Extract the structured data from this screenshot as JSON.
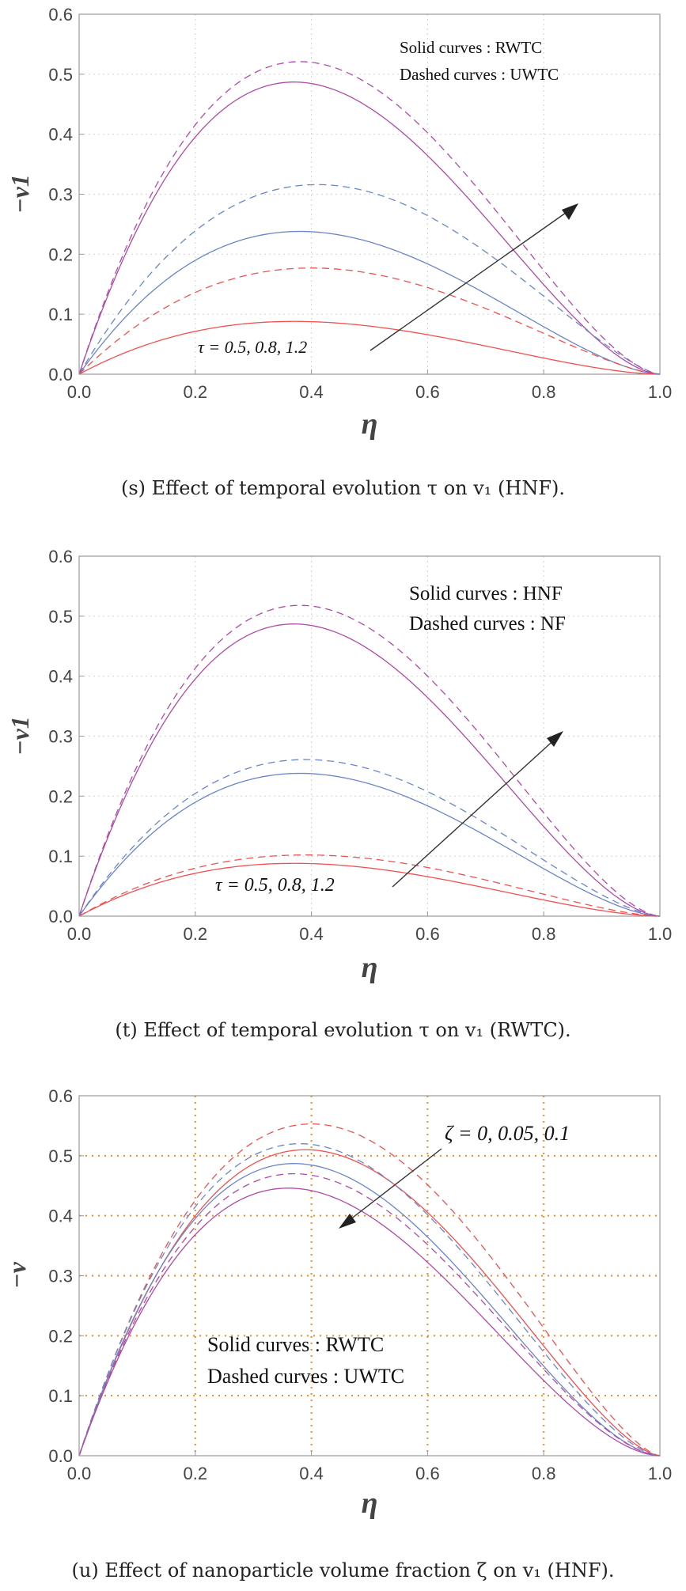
{
  "colors": {
    "red": "#f05050",
    "blue": "#6a86c8",
    "purple": "#b04aa8",
    "frame": "#999999",
    "grid_gray": "#d8d8d8",
    "grid_orange": "#f08a28",
    "arrow": "#333333",
    "text": "#222222"
  },
  "chart_data": [
    {
      "type": "line",
      "title": "",
      "xlabel": "η",
      "ylabel": "−v1",
      "xlim": [
        0,
        1
      ],
      "ylim": [
        0,
        0.6
      ],
      "xticks": [
        "0.0",
        "0.2",
        "0.4",
        "0.6",
        "0.8",
        "1.0"
      ],
      "yticks": [
        "0.0",
        "0.1",
        "0.2",
        "0.3",
        "0.4",
        "0.5",
        "0.6"
      ],
      "grid": "dotted",
      "legend": {
        "solid": "Solid curves : RWTC",
        "dashed": "Dashed curves : UWTC"
      },
      "annotation": "τ = 0.5, 0.8, 1.2",
      "caption": "(s) Effect of temporal evolution τ on v₁ (HNF).",
      "series": [
        {
          "name": "RWTC, τ = 0.5",
          "style": "solid",
          "color": "red",
          "peak_x": 0.37,
          "peak_y": 0.088
        },
        {
          "name": "RWTC, τ = 0.8",
          "style": "solid",
          "color": "blue",
          "peak_x": 0.38,
          "peak_y": 0.238
        },
        {
          "name": "RWTC, τ = 1.2",
          "style": "solid",
          "color": "purple",
          "peak_x": 0.37,
          "peak_y": 0.487
        },
        {
          "name": "UWTC, τ = 0.5",
          "style": "dashed",
          "color": "red",
          "peak_x": 0.4,
          "peak_y": 0.177
        },
        {
          "name": "UWTC, τ = 0.8",
          "style": "dashed",
          "color": "blue",
          "peak_x": 0.41,
          "peak_y": 0.316
        },
        {
          "name": "UWTC, τ = 1.2",
          "style": "dashed",
          "color": "purple",
          "peak_x": 0.38,
          "peak_y": 0.521
        }
      ]
    },
    {
      "type": "line",
      "title": "",
      "xlabel": "η",
      "ylabel": "−v1",
      "xlim": [
        0,
        1
      ],
      "ylim": [
        0,
        0.6
      ],
      "xticks": [
        "0.0",
        "0.2",
        "0.4",
        "0.6",
        "0.8",
        "1.0"
      ],
      "yticks": [
        "0.0",
        "0.1",
        "0.2",
        "0.3",
        "0.4",
        "0.5",
        "0.6"
      ],
      "grid": "dotted",
      "legend": {
        "solid": "Solid curves : HNF",
        "dashed": "Dashed curves : NF"
      },
      "annotation": "τ = 0.5, 0.8, 1.2",
      "caption": "(t) Effect of temporal evolution τ on v₁ (RWTC).",
      "series": [
        {
          "name": "HNF, τ = 0.5",
          "style": "solid",
          "color": "red",
          "peak_x": 0.37,
          "peak_y": 0.088
        },
        {
          "name": "HNF, τ = 0.8",
          "style": "solid",
          "color": "blue",
          "peak_x": 0.38,
          "peak_y": 0.238
        },
        {
          "name": "HNF, τ = 1.2",
          "style": "solid",
          "color": "purple",
          "peak_x": 0.37,
          "peak_y": 0.487
        },
        {
          "name": "NF, τ = 0.5",
          "style": "dashed",
          "color": "red",
          "peak_x": 0.39,
          "peak_y": 0.102
        },
        {
          "name": "NF, τ = 0.8",
          "style": "dashed",
          "color": "blue",
          "peak_x": 0.39,
          "peak_y": 0.261
        },
        {
          "name": "NF, τ = 1.2",
          "style": "dashed",
          "color": "purple",
          "peak_x": 0.38,
          "peak_y": 0.518
        }
      ]
    },
    {
      "type": "line",
      "title": "",
      "xlabel": "η",
      "ylabel": "−v",
      "xlim": [
        0,
        1
      ],
      "ylim": [
        0,
        0.6
      ],
      "xticks": [
        "0.0",
        "0.2",
        "0.4",
        "0.6",
        "0.8",
        "1.0"
      ],
      "yticks": [
        "0.0",
        "0.1",
        "0.2",
        "0.3",
        "0.4",
        "0.5",
        "0.6"
      ],
      "grid": "dotted",
      "legend": {
        "solid": "Solid curves : RWTC",
        "dashed": "Dashed curves : UWTC"
      },
      "annotation": "ζ = 0, 0.05, 0.1",
      "caption": "(u) Effect of nanoparticle volume fraction ζ on v₁ (HNF).",
      "series": [
        {
          "name": "RWTC, ζ = 0",
          "style": "solid",
          "color": "red",
          "peak_x": 0.39,
          "peak_y": 0.51
        },
        {
          "name": "RWTC, ζ = 0.05",
          "style": "solid",
          "color": "blue",
          "peak_x": 0.37,
          "peak_y": 0.487
        },
        {
          "name": "RWTC, ζ = 0.1",
          "style": "solid",
          "color": "purple",
          "peak_x": 0.36,
          "peak_y": 0.446
        },
        {
          "name": "UWTC, ζ = 0",
          "style": "dashed",
          "color": "red",
          "peak_x": 0.4,
          "peak_y": 0.553
        },
        {
          "name": "UWTC, ζ = 0.05",
          "style": "dashed",
          "color": "blue",
          "peak_x": 0.38,
          "peak_y": 0.52
        },
        {
          "name": "UWTC, ζ = 0.1",
          "style": "dashed",
          "color": "purple",
          "peak_x": 0.37,
          "peak_y": 0.47
        }
      ]
    }
  ]
}
